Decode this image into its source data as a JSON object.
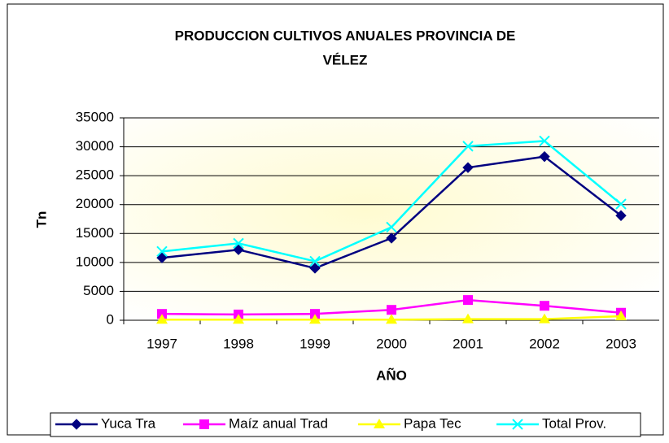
{
  "chart_data": {
    "type": "line",
    "title": [
      "PRODUCCION CULTIVOS ANUALES PROVINCIA DE",
      "VÉLEZ"
    ],
    "x_label": "AÑO",
    "y_label": "Tn",
    "categories": [
      "1997",
      "1998",
      "1999",
      "2000",
      "2001",
      "2002",
      "2003"
    ],
    "series": [
      {
        "name": "Yuca Tra",
        "color": "#000080",
        "marker": "diamond",
        "values": [
          10800,
          12200,
          9000,
          14200,
          26400,
          28300,
          18100
        ]
      },
      {
        "name": "Maíz anual Trad",
        "color": "#ff00ff",
        "marker": "square",
        "values": [
          1100,
          1000,
          1100,
          1800,
          3500,
          2500,
          1300
        ]
      },
      {
        "name": "Papa Tec",
        "color": "#ffff00",
        "marker": "triangle",
        "values": [
          100,
          100,
          100,
          100,
          200,
          200,
          700
        ]
      },
      {
        "name": "Total Prov.",
        "color": "#00ffff",
        "marker": "x",
        "values": [
          11900,
          13300,
          10200,
          16100,
          30100,
          31000,
          20100
        ]
      }
    ],
    "ylim": [
      0,
      35000
    ],
    "yticks": [
      0,
      5000,
      10000,
      15000,
      20000,
      25000,
      30000,
      35000
    ],
    "grid": true,
    "legend": "bottom"
  }
}
